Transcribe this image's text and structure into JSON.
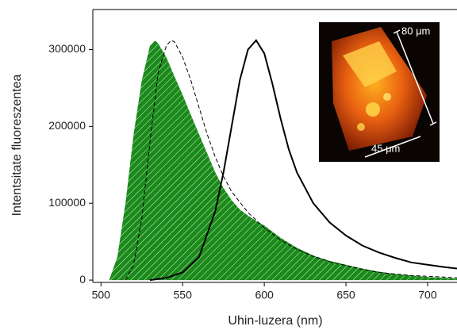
{
  "chart_data": {
    "type": "line",
    "x_label": "Uhin-luzera (nm)",
    "y_label": "Intentsitate fluoreszentea",
    "xlim": [
      495,
      718
    ],
    "xticks": [
      500,
      550,
      600,
      650,
      700
    ],
    "ylim": [
      -3000,
      350000
    ],
    "yticks": [
      0,
      100000,
      200000,
      300000
    ],
    "series": [
      {
        "color": "#1a8a1a",
        "fill": true,
        "hatch": true,
        "x": [
          505,
          510,
          515,
          520,
          525,
          530,
          533,
          535,
          540,
          545,
          550,
          555,
          560,
          565,
          570,
          575,
          580,
          585,
          590,
          595,
          600,
          610,
          620,
          630,
          640,
          650,
          660,
          670,
          680,
          690,
          700,
          710,
          718
        ],
        "values": [
          0,
          30000,
          100000,
          190000,
          260000,
          305000,
          312000,
          308000,
          290000,
          265000,
          241000,
          215000,
          190000,
          165000,
          140000,
          120000,
          104000,
          92000,
          84000,
          77000,
          71000,
          55000,
          42000,
          32000,
          25000,
          20000,
          15000,
          11000,
          8000,
          6000,
          4000,
          3000,
          2000
        ]
      },
      {
        "color": "#000000",
        "dash": true,
        "x": [
          515,
          520,
          525,
          530,
          535,
          540,
          543,
          545,
          550,
          555,
          560,
          565,
          570,
          575,
          580,
          590,
          600,
          610,
          620,
          630,
          640,
          650,
          660,
          670,
          680,
          690,
          700,
          718
        ],
        "values": [
          0,
          20000,
          80000,
          180000,
          270000,
          305000,
          312000,
          310000,
          290000,
          260000,
          225000,
          190000,
          160000,
          135000,
          115000,
          88000,
          68000,
          52000,
          40000,
          31000,
          24000,
          19000,
          14000,
          10000,
          8000,
          6000,
          5000,
          3000
        ]
      },
      {
        "color": "#000000",
        "x": [
          530,
          540,
          550,
          560,
          570,
          575,
          580,
          585,
          590,
          595,
          600,
          605,
          610,
          615,
          620,
          630,
          640,
          650,
          660,
          670,
          680,
          690,
          700,
          710,
          718
        ],
        "values": [
          0,
          3000,
          10000,
          30000,
          90000,
          140000,
          200000,
          260000,
          300000,
          312000,
          295000,
          255000,
          210000,
          170000,
          140000,
          100000,
          75000,
          58000,
          45000,
          36000,
          29000,
          23000,
          20000,
          17000,
          15000
        ]
      }
    ],
    "annotations": [
      "80 μm",
      "45 μm"
    ]
  }
}
